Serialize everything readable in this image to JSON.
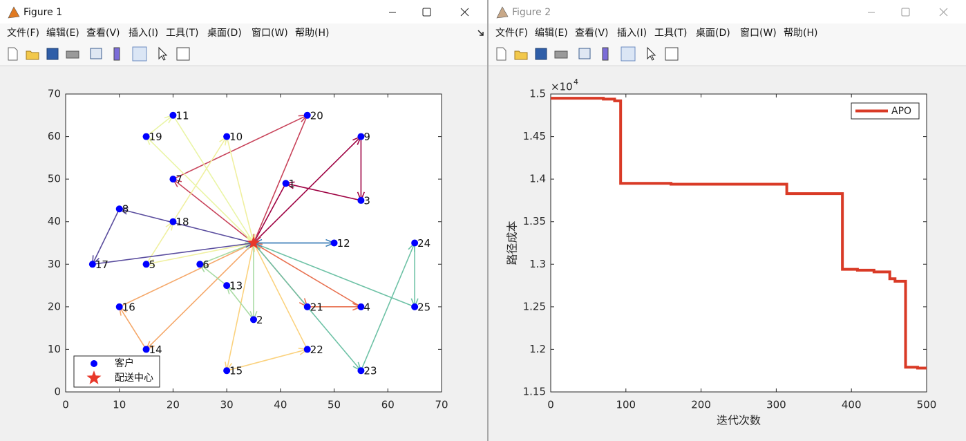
{
  "windows": [
    {
      "title": "Figure 1",
      "menu": [
        "文件(F)",
        "编辑(E)",
        "查看(V)",
        "插入(I)",
        "工具(T)",
        "桌面(D)",
        "窗口(W)",
        "帮助(H)"
      ]
    },
    {
      "title": "Figure 2",
      "menu": [
        "文件(F)",
        "编辑(E)",
        "查看(V)",
        "插入(I)",
        "工具(T)",
        "桌面(D)",
        "窗口(W)",
        "帮助(H)"
      ]
    }
  ],
  "chart_data": [
    {
      "type": "scatter",
      "xlim": [
        0,
        70
      ],
      "ylim": [
        0,
        70
      ],
      "xticks": [
        0,
        10,
        20,
        30,
        40,
        50,
        60,
        70
      ],
      "yticks": [
        0,
        10,
        20,
        30,
        40,
        50,
        60,
        70
      ],
      "legend": "lower left",
      "series": [
        {
          "name": "客户",
          "color": "#0000ff",
          "marker": "circle",
          "x": [
            41,
            35,
            55,
            55,
            15,
            25,
            20,
            10,
            55,
            30,
            20,
            50,
            30,
            15,
            30,
            10,
            5,
            20,
            15,
            45,
            45,
            45,
            55,
            65,
            65
          ],
          "y": [
            49,
            17,
            45,
            20,
            30,
            30,
            50,
            43,
            60,
            60,
            65,
            35,
            25,
            10,
            5,
            20,
            30,
            40,
            60,
            65,
            20,
            10,
            5,
            35,
            20
          ],
          "point_labels": [
            "1",
            "2",
            "3",
            "4",
            "5",
            "6",
            "7",
            "8",
            "9",
            "10",
            "11",
            "12",
            "13",
            "14",
            "15",
            "16",
            "17",
            "18",
            "19",
            "20",
            "21",
            "22",
            "23",
            "24",
            "25"
          ]
        },
        {
          "name": "配送中心",
          "color": "#e8382a",
          "marker": "star",
          "x": [
            35
          ],
          "y": [
            35
          ]
        }
      ],
      "routes": [
        {
          "color": "#9e0142",
          "stops": [
            0,
            9,
            3,
            1,
            0
          ]
        },
        {
          "color": "#c8435a",
          "stops": [
            0,
            7,
            20,
            0
          ]
        },
        {
          "color": "#e8704f",
          "stops": [
            0,
            21,
            4,
            0
          ]
        },
        {
          "color": "#f5a86a",
          "stops": [
            0,
            14,
            16,
            0
          ]
        },
        {
          "color": "#fbd27e",
          "stops": [
            0,
            15,
            22,
            0
          ]
        },
        {
          "color": "#f0f0a0",
          "stops": [
            0,
            5,
            18,
            10,
            0
          ]
        },
        {
          "color": "#eaf5a6",
          "stops": [
            0,
            19,
            11,
            0
          ]
        },
        {
          "color": "#a9dba4",
          "stops": [
            0,
            2,
            13,
            6,
            0
          ]
        },
        {
          "color": "#6ec2a6",
          "stops": [
            0,
            23,
            24,
            25,
            0
          ]
        },
        {
          "color": "#3c7fb8",
          "stops": [
            0,
            12,
            0
          ]
        },
        {
          "color": "#5a4d9e",
          "stops": [
            0,
            8,
            17,
            0
          ]
        }
      ]
    },
    {
      "type": "line",
      "xlabel": "迭代次数",
      "ylabel": "路径成本",
      "y_multiplier": "×10",
      "y_exponent": 4,
      "xlim": [
        0,
        500
      ],
      "ylim": [
        1.15,
        1.5
      ],
      "xticks": [
        0,
        100,
        200,
        300,
        400,
        500
      ],
      "yticks": [
        1.15,
        1.2,
        1.25,
        1.3,
        1.35,
        1.4,
        1.45,
        1.5
      ],
      "legend": "upper right",
      "series": [
        {
          "name": "APO",
          "color": "#d93a26",
          "x": [
            0,
            70,
            70,
            85,
            85,
            93,
            93,
            160,
            160,
            314,
            314,
            388,
            388,
            408,
            408,
            430,
            430,
            451,
            451,
            458,
            458,
            472,
            472,
            488,
            488,
            500
          ],
          "values": [
            1.495,
            1.495,
            1.494,
            1.494,
            1.492,
            1.492,
            1.395,
            1.395,
            1.394,
            1.394,
            1.383,
            1.383,
            1.294,
            1.294,
            1.293,
            1.293,
            1.291,
            1.291,
            1.283,
            1.283,
            1.28,
            1.28,
            1.179,
            1.179,
            1.178,
            1.178
          ]
        }
      ]
    }
  ]
}
